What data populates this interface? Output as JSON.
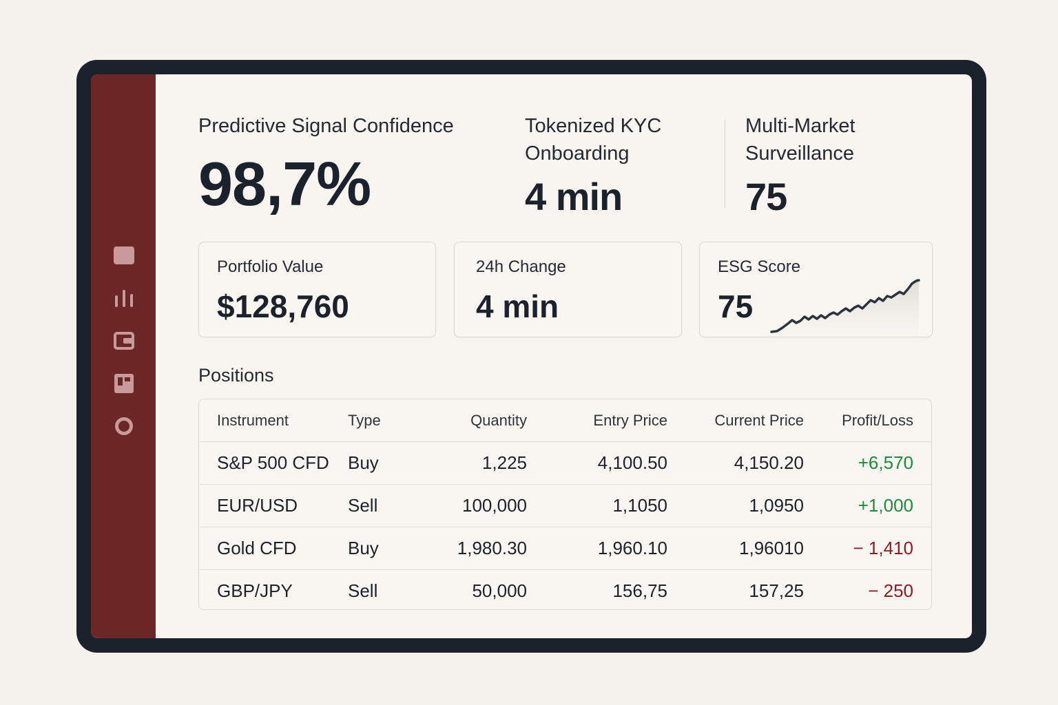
{
  "kpis": {
    "signal_confidence": {
      "label": "Predictive Signal Confidence",
      "value": "98,7%"
    },
    "kyc": {
      "label_line1": "Tokenized KYC",
      "label_line2": "Onboarding",
      "value": "4 min"
    },
    "surveillance": {
      "label_line1": "Multi-Market",
      "label_line2": "Surveillance",
      "value": "75"
    }
  },
  "cards": {
    "portfolio": {
      "label": "Portfolio Value",
      "value": "$128,760"
    },
    "change": {
      "label": "24h Change",
      "value": "4 min"
    },
    "esg": {
      "label": "ESG Score",
      "value": "75"
    }
  },
  "sidebar": {
    "items": [
      {
        "icon": "square-icon"
      },
      {
        "icon": "bar-chart-icon"
      },
      {
        "icon": "wallet-icon"
      },
      {
        "icon": "layout-icon"
      },
      {
        "icon": "circle-icon"
      }
    ]
  },
  "positions": {
    "title": "Positions",
    "headers": [
      "Instrument",
      "Type",
      "Quantity",
      "Entry Price",
      "Current Price",
      "Profit/Loss"
    ],
    "rows": [
      {
        "instrument": "S&P 500 CFD",
        "type": "Buy",
        "quantity": "1,225",
        "entry": "4,100.50",
        "current": "4,150.20",
        "pl": "+6,570",
        "positive": true
      },
      {
        "instrument": "EUR/USD",
        "type": "Sell",
        "quantity": "100,000",
        "entry": "1,1050",
        "current": "1,0950",
        "pl": "+1,000",
        "positive": true
      },
      {
        "instrument": "Gold CFD",
        "type": "Buy",
        "quantity": "1,980.30",
        "entry": "1,960.10",
        "current": "1,96010",
        "pl": "− 1,410",
        "positive": false
      },
      {
        "instrument": "GBP/JPY",
        "type": "Sell",
        "quantity": "50,000",
        "entry": "156,75",
        "current": "157,25",
        "pl": "− 250",
        "positive": false
      }
    ]
  },
  "colors": {
    "sidebar": "#6b2626",
    "positive": "#1f8a3a",
    "negative": "#8e1c22",
    "frame": "#1b222c"
  }
}
